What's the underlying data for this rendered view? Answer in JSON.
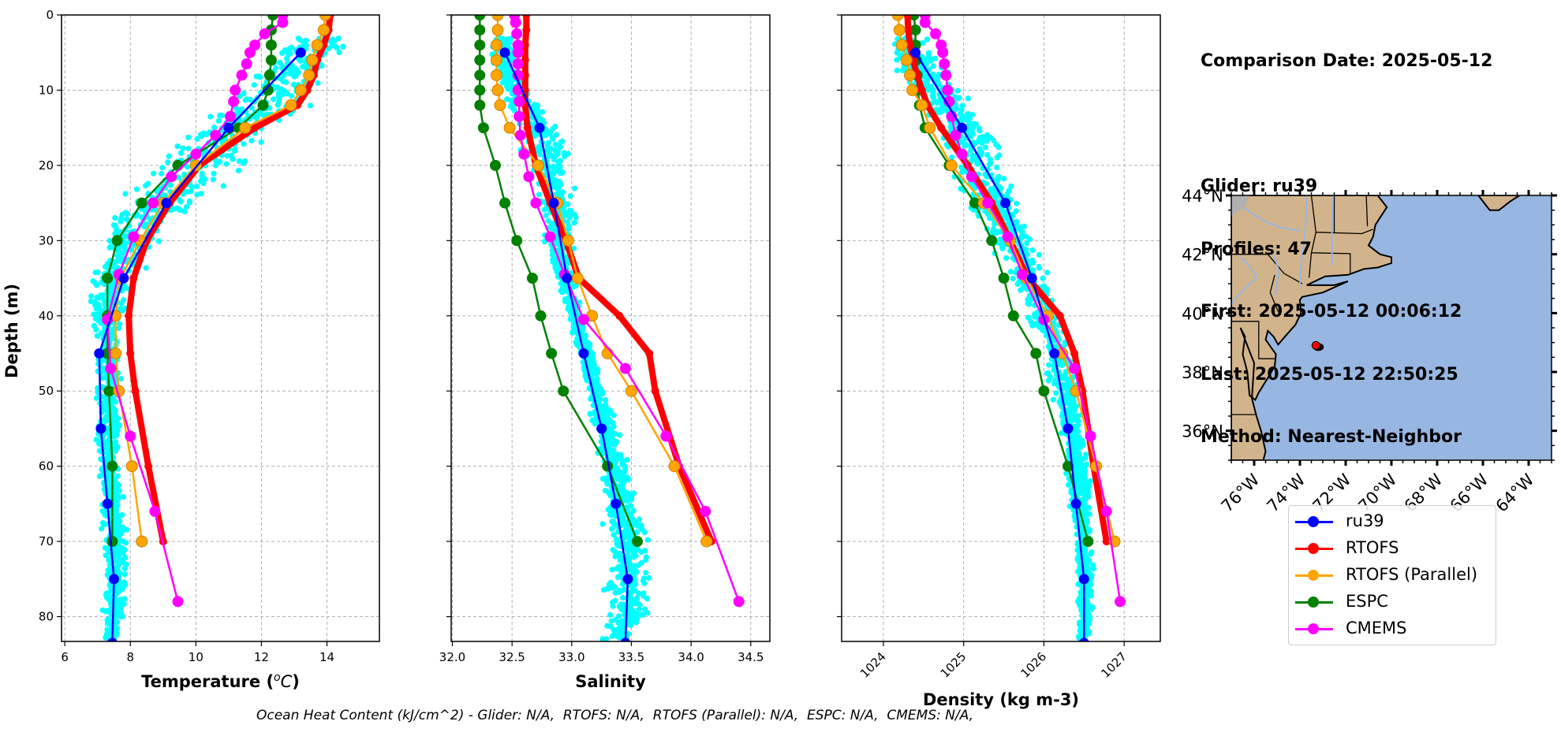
{
  "info": {
    "comparison_date": "Comparison Date: 2025-05-12",
    "glider": "Glider: ru39",
    "profiles": "Profiles: 47",
    "first": "First: 2025-05-12 00:06:12",
    "last": "Last: 2025-05-12 22:50:25",
    "method": "Method: Nearest-Neighbor"
  },
  "footer": "Ocean Heat Content (kJ/cm^2) - Glider: N/A,  RTOFS: N/A,  RTOFS (Parallel): N/A,  ESPC: N/A,  CMEMS: N/A,",
  "legend": [
    {
      "label": "ru39",
      "color": "#0000ff"
    },
    {
      "label": "RTOFS",
      "color": "#ff0000"
    },
    {
      "label": "RTOFS (Parallel)",
      "color": "#ffa500"
    },
    {
      "label": "ESPC",
      "color": "#008000"
    },
    {
      "label": "CMEMS",
      "color": "#ff00ff"
    }
  ],
  "colors": {
    "glider_scatter": "#00ffff",
    "ru39": "#0000ff",
    "rtofs": "#ff0000",
    "rtofs_parallel": "#ffa500",
    "espc": "#008000",
    "cmems": "#ff00ff",
    "land": "#d2b48c",
    "ocean": "#97b6e1",
    "river": "#97b6e1"
  },
  "map": {
    "lat_labels": [
      "44°N",
      "42°N",
      "40°N",
      "38°N",
      "36°N"
    ],
    "lat_values": [
      44,
      42,
      40,
      38,
      36
    ],
    "lon_labels": [
      "76°W",
      "74°W",
      "72°W",
      "70°W",
      "68°W",
      "66°W",
      "64°W"
    ],
    "lon_values": [
      -76,
      -74,
      -72,
      -70,
      -68,
      -66,
      -64
    ],
    "extent": {
      "lon_min": -77,
      "lon_max": -63,
      "lat_min": 35,
      "lat_max": 44
    },
    "glider_track": {
      "lon": -73.3,
      "lat": 38.9,
      "marker_color": "#ff0000",
      "track_color": "#000000"
    }
  },
  "chart_data": [
    {
      "type": "line",
      "title": "",
      "xlabel": "Temperature (°C)",
      "ylabel": "Depth (m)",
      "xlim": [
        5.9,
        15.6
      ],
      "ylim": [
        83.3,
        0
      ],
      "xticks": [
        6,
        8,
        10,
        12,
        14
      ],
      "yticks": [
        0,
        10,
        20,
        30,
        40,
        50,
        60,
        70,
        80
      ],
      "grid": true,
      "glider_envelope": {
        "depth": [
          3,
          5,
          8,
          10,
          13,
          15,
          18,
          20,
          23,
          25,
          28,
          30,
          33,
          35,
          38,
          40,
          43,
          45,
          50,
          55,
          60,
          65,
          70,
          75,
          80,
          83
        ],
        "min": [
          12.8,
          12.0,
          11.3,
          11.0,
          10.0,
          9.2,
          8.6,
          8.3,
          7.7,
          7.3,
          7.0,
          6.9,
          6.75,
          6.7,
          6.65,
          6.7,
          6.75,
          6.8,
          6.85,
          6.9,
          6.95,
          7.0,
          7.1,
          7.1,
          7.1,
          7.1
        ],
        "max": [
          15.1,
          14.8,
          14.4,
          14.2,
          13.6,
          13.0,
          12.4,
          12.2,
          11.1,
          10.4,
          9.6,
          9.2,
          8.7,
          8.3,
          8.0,
          7.9,
          7.8,
          7.8,
          7.8,
          7.8,
          7.8,
          7.9,
          8.0,
          8.0,
          8.0,
          7.6
        ]
      },
      "series": [
        {
          "name": "ru39",
          "depth": [
            5,
            15,
            25,
            35,
            45,
            55,
            65,
            75,
            83.5
          ],
          "values": [
            13.2,
            11.0,
            9.1,
            7.8,
            7.05,
            7.1,
            7.3,
            7.5,
            7.45
          ]
        },
        {
          "name": "RTOFS",
          "depth": [
            0,
            2,
            4,
            6,
            8,
            10,
            12,
            15,
            20,
            25,
            30,
            35,
            40,
            45,
            50,
            60,
            70
          ],
          "values": [
            14.1,
            14.05,
            13.9,
            13.7,
            13.6,
            13.4,
            13.1,
            11.8,
            10.1,
            9.2,
            8.5,
            8.1,
            7.95,
            8.0,
            8.15,
            8.55,
            9.0
          ]
        },
        {
          "name": "RTOFS (Parallel)",
          "depth": [
            0,
            2,
            4,
            6,
            8,
            10,
            12,
            15,
            20,
            25,
            30,
            35,
            40,
            45,
            50,
            60,
            70
          ],
          "values": [
            13.95,
            13.9,
            13.7,
            13.55,
            13.45,
            13.2,
            12.9,
            11.5,
            10.0,
            9.0,
            8.3,
            7.7,
            7.55,
            7.55,
            7.65,
            8.05,
            8.35
          ]
        },
        {
          "name": "ESPC",
          "depth": [
            0,
            2,
            4,
            6,
            8,
            10,
            12,
            15,
            20,
            25,
            30,
            35,
            40,
            45,
            50,
            60,
            70
          ],
          "values": [
            12.35,
            12.3,
            12.3,
            12.3,
            12.25,
            12.2,
            12.05,
            11.3,
            9.45,
            8.35,
            7.6,
            7.3,
            7.3,
            7.3,
            7.35,
            7.45,
            7.45
          ]
        },
        {
          "name": "CMEMS",
          "depth": [
            0,
            1,
            2.5,
            4,
            5,
            6.5,
            8,
            10,
            11.5,
            13.5,
            16,
            18.5,
            21.5,
            25,
            29.5,
            34.5,
            40.5,
            47,
            56,
            66,
            78
          ],
          "values": [
            12.65,
            12.65,
            12.1,
            11.8,
            11.65,
            11.55,
            11.4,
            11.2,
            11.15,
            11.05,
            10.6,
            10.0,
            9.25,
            8.7,
            8.1,
            7.65,
            7.3,
            7.4,
            8.0,
            8.75,
            9.45
          ]
        }
      ]
    },
    {
      "type": "line",
      "title": "",
      "xlabel": "Salinity",
      "ylabel": "",
      "xlim": [
        31.99,
        34.66
      ],
      "ylim": [
        83.3,
        0
      ],
      "xticks": [
        32.0,
        32.5,
        33.0,
        33.5,
        34.0,
        34.5
      ],
      "xtick_labels": [
        "32.0",
        "32.5",
        "33.0",
        "33.5",
        "34.0",
        "34.5"
      ],
      "grid": true,
      "glider_envelope": {
        "depth": [
          3,
          5,
          8,
          10,
          13,
          15,
          18,
          20,
          23,
          25,
          28,
          30,
          33,
          35,
          38,
          40,
          43,
          45,
          50,
          55,
          60,
          65,
          70,
          75,
          80,
          83
        ],
        "min": [
          32.3,
          32.28,
          32.3,
          32.38,
          32.45,
          32.5,
          32.55,
          32.6,
          32.65,
          32.7,
          32.75,
          32.75,
          32.8,
          32.85,
          32.9,
          32.95,
          33.0,
          33.05,
          33.1,
          33.15,
          33.2,
          33.22,
          33.23,
          33.23,
          33.23,
          33.22
        ],
        "max": [
          32.5,
          32.55,
          32.6,
          32.66,
          32.85,
          32.93,
          33.05,
          33.06,
          33.06,
          33.05,
          33.05,
          33.05,
          33.03,
          33.05,
          33.08,
          33.1,
          33.15,
          33.2,
          33.3,
          33.42,
          33.5,
          33.6,
          33.72,
          33.72,
          33.72,
          33.5
        ]
      },
      "series": [
        {
          "name": "ru39",
          "depth": [
            5,
            15,
            25,
            35,
            45,
            55,
            65,
            75,
            83.5
          ],
          "values": [
            32.44,
            32.73,
            32.85,
            32.96,
            33.1,
            33.25,
            33.37,
            33.47,
            33.45
          ]
        },
        {
          "name": "RTOFS",
          "depth": [
            0,
            2,
            4,
            6,
            8,
            10,
            12,
            15,
            20,
            25,
            30,
            35,
            40,
            45,
            50,
            60,
            70
          ],
          "values": [
            32.62,
            32.62,
            32.61,
            32.61,
            32.61,
            32.61,
            32.61,
            32.63,
            32.7,
            32.82,
            32.95,
            33.06,
            33.4,
            33.65,
            33.7,
            33.9,
            34.17
          ]
        },
        {
          "name": "RTOFS (Parallel)",
          "depth": [
            0,
            2,
            4,
            6,
            8,
            10,
            12,
            15,
            20,
            25,
            30,
            35,
            40,
            45,
            50,
            60,
            70
          ],
          "values": [
            32.38,
            32.38,
            32.37,
            32.37,
            32.37,
            32.38,
            32.4,
            32.48,
            32.72,
            32.88,
            32.97,
            33.05,
            33.17,
            33.3,
            33.5,
            33.86,
            34.13
          ]
        },
        {
          "name": "ESPC",
          "depth": [
            0,
            2,
            4,
            6,
            8,
            10,
            12,
            15,
            20,
            25,
            30,
            35,
            40,
            45,
            50,
            60,
            70
          ],
          "values": [
            32.23,
            32.23,
            32.23,
            32.23,
            32.23,
            32.23,
            32.23,
            32.26,
            32.36,
            32.44,
            32.54,
            32.67,
            32.74,
            32.83,
            32.93,
            33.3,
            33.55
          ]
        },
        {
          "name": "CMEMS",
          "depth": [
            0,
            1,
            2.5,
            4,
            5,
            6.5,
            8,
            10,
            11.5,
            13.5,
            16,
            18.5,
            21.5,
            25,
            29.5,
            34.5,
            40.5,
            47,
            56,
            66,
            78
          ],
          "values": [
            32.52,
            32.53,
            32.54,
            32.55,
            32.55,
            32.55,
            32.55,
            32.55,
            32.56,
            32.56,
            32.57,
            32.6,
            32.64,
            32.7,
            32.82,
            32.94,
            33.1,
            33.45,
            33.79,
            34.12,
            34.4
          ]
        }
      ]
    },
    {
      "type": "line",
      "title": "",
      "xlabel": "Density (kg m-3)",
      "ylabel": "",
      "xlim": [
        1023.48,
        1027.45
      ],
      "ylim": [
        83.3,
        0
      ],
      "xticks": [
        1024,
        1025,
        1026,
        1027
      ],
      "xtick_labels": [
        "1024",
        "1025",
        "1026",
        "1027"
      ],
      "grid": true,
      "glider_envelope": {
        "depth": [
          3,
          5,
          8,
          10,
          13,
          15,
          18,
          20,
          23,
          25,
          28,
          30,
          33,
          35,
          38,
          40,
          43,
          45,
          50,
          55,
          60,
          65,
          70,
          75,
          80,
          83
        ],
        "min": [
          1024.0,
          1024.0,
          1024.15,
          1024.28,
          1024.4,
          1024.5,
          1024.6,
          1024.7,
          1024.85,
          1025.0,
          1025.15,
          1025.25,
          1025.4,
          1025.5,
          1025.65,
          1025.75,
          1025.85,
          1025.95,
          1026.05,
          1026.15,
          1026.25,
          1026.3,
          1026.35,
          1026.38,
          1026.4,
          1026.42
        ],
        "max": [
          1024.6,
          1024.7,
          1024.95,
          1025.05,
          1025.3,
          1025.5,
          1025.65,
          1025.7,
          1025.75,
          1025.8,
          1025.88,
          1025.95,
          1026.05,
          1026.12,
          1026.2,
          1026.28,
          1026.35,
          1026.4,
          1026.5,
          1026.55,
          1026.6,
          1026.62,
          1026.62,
          1026.65,
          1026.65,
          1026.55
        ]
      },
      "series": [
        {
          "name": "ru39",
          "depth": [
            5,
            15,
            25,
            35,
            45,
            55,
            65,
            75,
            83.5
          ],
          "values": [
            1024.4,
            1024.98,
            1025.52,
            1025.85,
            1026.13,
            1026.3,
            1026.4,
            1026.5,
            1026.5
          ]
        },
        {
          "name": "RTOFS",
          "depth": [
            0,
            2,
            4,
            6,
            8,
            10,
            12,
            15,
            20,
            25,
            30,
            35,
            40,
            45,
            50,
            60,
            70
          ],
          "values": [
            1024.3,
            1024.31,
            1024.33,
            1024.37,
            1024.42,
            1024.48,
            1024.55,
            1024.72,
            1025.05,
            1025.35,
            1025.58,
            1025.8,
            1026.2,
            1026.38,
            1026.48,
            1026.62,
            1026.78
          ]
        },
        {
          "name": "RTOFS (Parallel)",
          "depth": [
            0,
            2,
            4,
            6,
            8,
            10,
            12,
            15,
            20,
            25,
            30,
            35,
            40,
            45,
            50,
            60,
            70
          ],
          "values": [
            1024.18,
            1024.2,
            1024.23,
            1024.29,
            1024.33,
            1024.36,
            1024.48,
            1024.58,
            1024.85,
            1025.25,
            1025.58,
            1025.78,
            1026.05,
            1026.23,
            1026.4,
            1026.65,
            1026.88
          ]
        },
        {
          "name": "ESPC",
          "depth": [
            0,
            2,
            4,
            6,
            8,
            10,
            12,
            15,
            20,
            25,
            30,
            35,
            40,
            45,
            50,
            60,
            70
          ],
          "values": [
            1024.38,
            1024.4,
            1024.4,
            1024.41,
            1024.42,
            1024.43,
            1024.45,
            1024.52,
            1024.82,
            1025.14,
            1025.35,
            1025.5,
            1025.62,
            1025.9,
            1026.0,
            1026.3,
            1026.55
          ]
        },
        {
          "name": "CMEMS",
          "depth": [
            0,
            1,
            2.5,
            4,
            5,
            6.5,
            8,
            10,
            11.5,
            13.5,
            16,
            18.5,
            21.5,
            25,
            29.5,
            34.5,
            40.5,
            47,
            56,
            66,
            78
          ],
          "values": [
            1024.52,
            1024.52,
            1024.65,
            1024.72,
            1024.74,
            1024.76,
            1024.78,
            1024.8,
            1024.82,
            1024.85,
            1024.9,
            1024.98,
            1025.1,
            1025.3,
            1025.55,
            1025.73,
            1026.0,
            1026.38,
            1026.58,
            1026.78,
            1026.95
          ]
        }
      ]
    }
  ]
}
